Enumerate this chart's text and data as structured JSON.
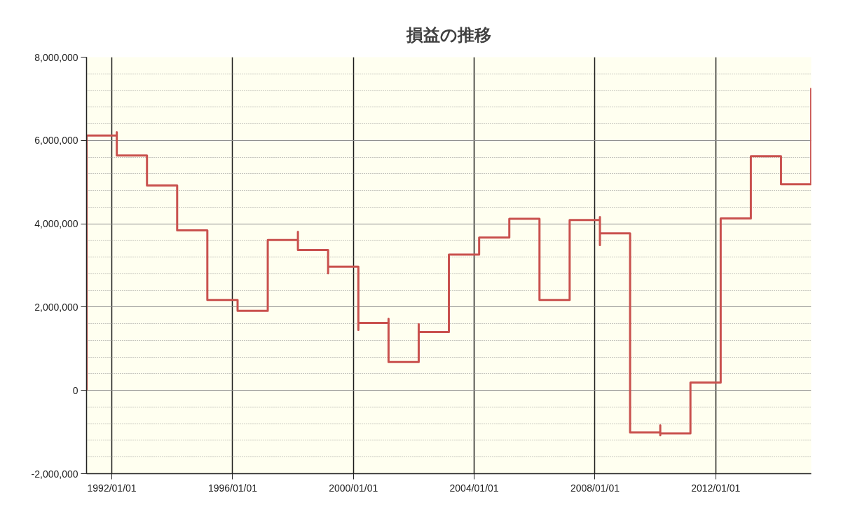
{
  "chart_data": {
    "type": "step",
    "title": "損益の推移",
    "x": [
      "1991-03",
      "1991-03",
      "1992-03",
      "1992-03",
      "1993-03",
      "1994-03",
      "1995-03",
      "1996-03",
      "1997-03",
      "1998-03",
      "1998-03",
      "1999-03",
      "1999-03",
      "2000-03",
      "2000-03",
      "2001-03",
      "2001-03",
      "2002-03",
      "2002-03",
      "2003-03",
      "2004-03",
      "2005-03",
      "2006-03",
      "2007-03",
      "2008-03",
      "2008-03",
      "2008-03",
      "2009-03",
      "2010-03",
      "2010-03",
      "2010-03",
      "2011-03",
      "2012-03",
      "2013-03",
      "2014-03",
      "2015-03"
    ],
    "values": [
      0,
      6120000,
      6200000,
      5640000,
      4920000,
      3840000,
      2170000,
      1910000,
      3610000,
      3810000,
      3370000,
      2810000,
      2970000,
      1450000,
      1620000,
      1720000,
      680000,
      1590000,
      1400000,
      3260000,
      3670000,
      4120000,
      2170000,
      4090000,
      4160000,
      3490000,
      3770000,
      -1010000,
      -840000,
      -1080000,
      -1030000,
      190000,
      4130000,
      5620000,
      4950000,
      7260000
    ],
    "color": "#c9514e",
    "line_style": "solid",
    "xlim": [
      "1991-03",
      "2015-03"
    ],
    "xticks": [
      {
        "value": "1992-01-01",
        "label": "1992/01/01"
      },
      {
        "value": "1996-01-01",
        "label": "1996/01/01"
      },
      {
        "value": "2000-01-01",
        "label": "2000/01/01"
      },
      {
        "value": "2004-01-01",
        "label": "2004/01/01"
      },
      {
        "value": "2008-01-01",
        "label": "2008/01/01"
      },
      {
        "value": "2012-01-01",
        "label": "2012/01/01"
      }
    ],
    "ylim": [
      -2000000,
      8000000
    ],
    "yticks": [
      {
        "value": -2000000,
        "label": "-2,000,000"
      },
      {
        "value": -1600000,
        "label": null
      },
      {
        "value": -1200000,
        "label": null
      },
      {
        "value": -800000,
        "label": null
      },
      {
        "value": -400000,
        "label": null
      },
      {
        "value": 0,
        "label": "0"
      },
      {
        "value": 400000,
        "label": null
      },
      {
        "value": 800000,
        "label": null
      },
      {
        "value": 1200000,
        "label": null
      },
      {
        "value": 1600000,
        "label": null
      },
      {
        "value": 2000000,
        "label": "2,000,000"
      },
      {
        "value": 2400000,
        "label": null
      },
      {
        "value": 2800000,
        "label": null
      },
      {
        "value": 3200000,
        "label": null
      },
      {
        "value": 3600000,
        "label": null
      },
      {
        "value": 4000000,
        "label": "4,000,000"
      },
      {
        "value": 4400000,
        "label": null
      },
      {
        "value": 4800000,
        "label": null
      },
      {
        "value": 5200000,
        "label": null
      },
      {
        "value": 5600000,
        "label": null
      },
      {
        "value": 6000000,
        "label": "6,000,000"
      },
      {
        "value": 6400000,
        "label": null
      },
      {
        "value": 6800000,
        "label": null
      },
      {
        "value": 7200000,
        "label": null
      },
      {
        "value": 7600000,
        "label": null
      },
      {
        "value": 8000000,
        "label": "8,000,000"
      }
    ],
    "grid": true
  }
}
